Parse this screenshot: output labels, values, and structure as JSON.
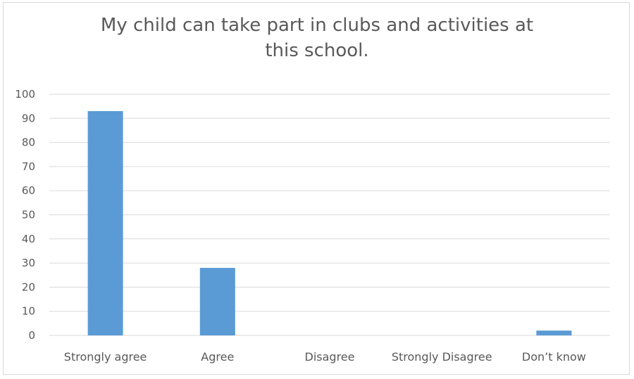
{
  "chart_data": {
    "type": "bar",
    "title_lines": [
      "My child can take part in clubs and activities at",
      "this school."
    ],
    "categories": [
      "Strongly agree",
      "Agree",
      "Disagree",
      "Strongly Disagree",
      "Don’t know"
    ],
    "values": [
      93,
      28,
      0,
      0,
      2
    ],
    "ylim": [
      0,
      100
    ],
    "yticks": [
      "0",
      "10",
      "20",
      "30",
      "40",
      "50",
      "60",
      "70",
      "80",
      "90",
      "100"
    ],
    "grid": true,
    "bar_color": "#5b9bd5",
    "grid_color": "#d9d9d9"
  }
}
